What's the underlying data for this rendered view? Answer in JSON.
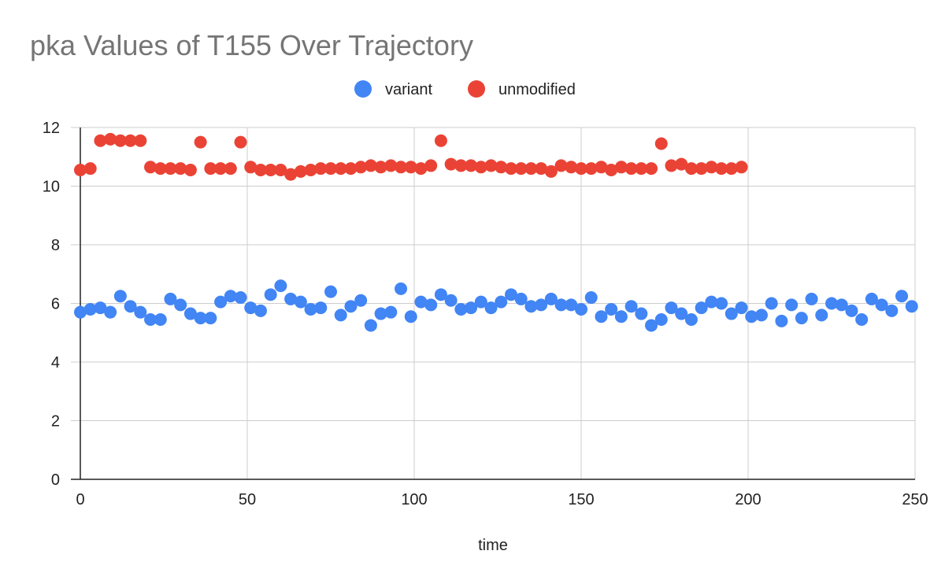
{
  "chart_data": {
    "type": "scatter",
    "title": "pka Values of T155 Over Trajectory",
    "xlabel": "time",
    "ylabel": "",
    "xlim": [
      0,
      250
    ],
    "ylim": [
      0,
      12
    ],
    "xticks": [
      0,
      50,
      100,
      150,
      200,
      250
    ],
    "yticks": [
      0,
      2,
      4,
      6,
      8,
      10,
      12
    ],
    "grid": true,
    "legend_position": "top-center",
    "series": [
      {
        "name": "variant",
        "color": "#4285F4",
        "x": [
          0,
          3,
          6,
          9,
          12,
          15,
          18,
          21,
          24,
          27,
          30,
          33,
          36,
          39,
          42,
          45,
          48,
          51,
          54,
          57,
          60,
          63,
          66,
          69,
          72,
          75,
          78,
          81,
          84,
          87,
          90,
          93,
          96,
          99,
          102,
          105,
          108,
          111,
          114,
          117,
          120,
          123,
          126,
          129,
          132,
          135,
          138,
          141,
          144,
          147,
          150,
          153,
          156,
          159,
          162,
          165,
          168,
          171,
          174,
          177,
          180,
          183,
          186,
          189,
          192,
          195,
          198,
          201,
          204,
          207,
          210,
          213,
          216,
          219,
          222,
          225,
          228,
          231,
          234,
          237,
          240,
          243,
          246,
          249
        ],
        "y": [
          5.7,
          5.8,
          5.85,
          5.7,
          6.25,
          5.9,
          5.7,
          5.45,
          5.45,
          6.15,
          5.95,
          5.65,
          5.5,
          5.5,
          6.05,
          6.25,
          6.2,
          5.85,
          5.75,
          6.3,
          6.6,
          6.15,
          6.05,
          5.8,
          5.85,
          6.4,
          5.6,
          5.9,
          6.1,
          5.25,
          5.65,
          5.7,
          6.5,
          5.55,
          6.05,
          5.95,
          6.3,
          6.1,
          5.8,
          5.85,
          6.05,
          5.85,
          6.05,
          6.3,
          6.15,
          5.9,
          5.95,
          6.15,
          5.95,
          5.95,
          5.8,
          6.2,
          5.55,
          5.8,
          5.55,
          5.9,
          5.65,
          5.25,
          5.45,
          5.85,
          5.65,
          5.45,
          5.85,
          6.05,
          6.0,
          5.65,
          5.85,
          5.55,
          5.6,
          6.0,
          5.4,
          5.95,
          5.5,
          6.15,
          5.6,
          6.0,
          5.95,
          5.75,
          5.45,
          6.15,
          5.95,
          5.75,
          6.25,
          5.9
        ]
      },
      {
        "name": "unmodified",
        "color": "#EA4335",
        "x": [
          0,
          3,
          6,
          9,
          12,
          15,
          18,
          21,
          24,
          27,
          30,
          33,
          36,
          39,
          42,
          45,
          48,
          51,
          54,
          57,
          60,
          63,
          66,
          69,
          72,
          75,
          78,
          81,
          84,
          87,
          90,
          93,
          96,
          99,
          102,
          105,
          108,
          111,
          114,
          117,
          120,
          123,
          126,
          129,
          132,
          135,
          138,
          141,
          144,
          147,
          150,
          153,
          156,
          159,
          162,
          165,
          168,
          171,
          174,
          177,
          180,
          183,
          186,
          189,
          192,
          195,
          198
        ],
        "y": [
          10.55,
          10.6,
          11.55,
          11.6,
          11.55,
          11.55,
          11.55,
          10.65,
          10.6,
          10.6,
          10.6,
          10.55,
          11.5,
          10.6,
          10.6,
          10.6,
          11.5,
          10.65,
          10.55,
          10.55,
          10.55,
          10.4,
          10.5,
          10.55,
          10.6,
          10.6,
          10.6,
          10.6,
          10.65,
          10.7,
          10.65,
          10.7,
          10.65,
          10.65,
          10.6,
          10.7,
          11.55,
          10.75,
          10.7,
          10.7,
          10.65,
          10.7,
          10.65,
          10.6,
          10.6,
          10.6,
          10.6,
          10.5,
          10.7,
          10.65,
          10.6,
          10.6,
          10.65,
          10.55,
          10.65,
          10.6,
          10.6,
          10.6,
          11.45,
          10.7,
          10.75,
          10.6,
          10.6,
          10.65,
          10.6,
          10.6,
          10.65
        ]
      }
    ]
  }
}
